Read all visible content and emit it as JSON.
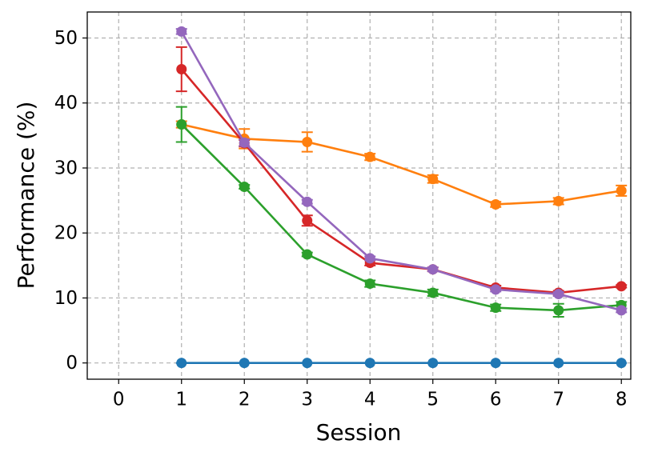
{
  "chart_data": {
    "type": "line",
    "xlabel": "Session",
    "ylabel": "Performance (%)",
    "x": [
      1,
      2,
      3,
      4,
      5,
      6,
      7,
      8
    ],
    "xlim": [
      -0.5,
      8.15
    ],
    "xticks": [
      0,
      1,
      2,
      3,
      4,
      5,
      6,
      7,
      8
    ],
    "ylim": [
      -2.5,
      54
    ],
    "yticks": [
      0,
      10,
      20,
      30,
      40,
      50
    ],
    "grid": true,
    "series": [
      {
        "color": "#1f77b4",
        "values": [
          0,
          0,
          0,
          0,
          0,
          0,
          0,
          0
        ],
        "errors": [
          0,
          0,
          0,
          0,
          0,
          0,
          0,
          0
        ]
      },
      {
        "color": "#ff7f0e",
        "values": [
          36.7,
          34.5,
          34.0,
          31.7,
          28.3,
          24.4,
          24.9,
          26.5
        ],
        "errors": [
          0.5,
          1.5,
          1.5,
          0.5,
          0.6,
          0.4,
          0.5,
          0.8
        ]
      },
      {
        "color": "#2ca02c",
        "values": [
          36.7,
          27.1,
          16.7,
          12.2,
          10.8,
          8.5,
          8.1,
          8.9
        ],
        "errors": [
          2.7,
          0.3,
          0.3,
          0.5,
          0.5,
          0.5,
          1.0,
          0.5
        ]
      },
      {
        "color": "#d62728",
        "values": [
          45.2,
          33.8,
          21.9,
          15.4,
          14.4,
          11.6,
          10.8,
          11.8
        ],
        "errors": [
          3.4,
          0.5,
          0.8,
          0.4,
          0.3,
          0.3,
          0.3,
          0.2
        ]
      },
      {
        "color": "#9467bd",
        "values": [
          51.0,
          33.9,
          24.8,
          16.1,
          14.4,
          11.3,
          10.6,
          8.1
        ],
        "errors": [
          0.4,
          0.5,
          0.3,
          0.3,
          0.3,
          0.3,
          0.3,
          0.3
        ]
      }
    ]
  }
}
